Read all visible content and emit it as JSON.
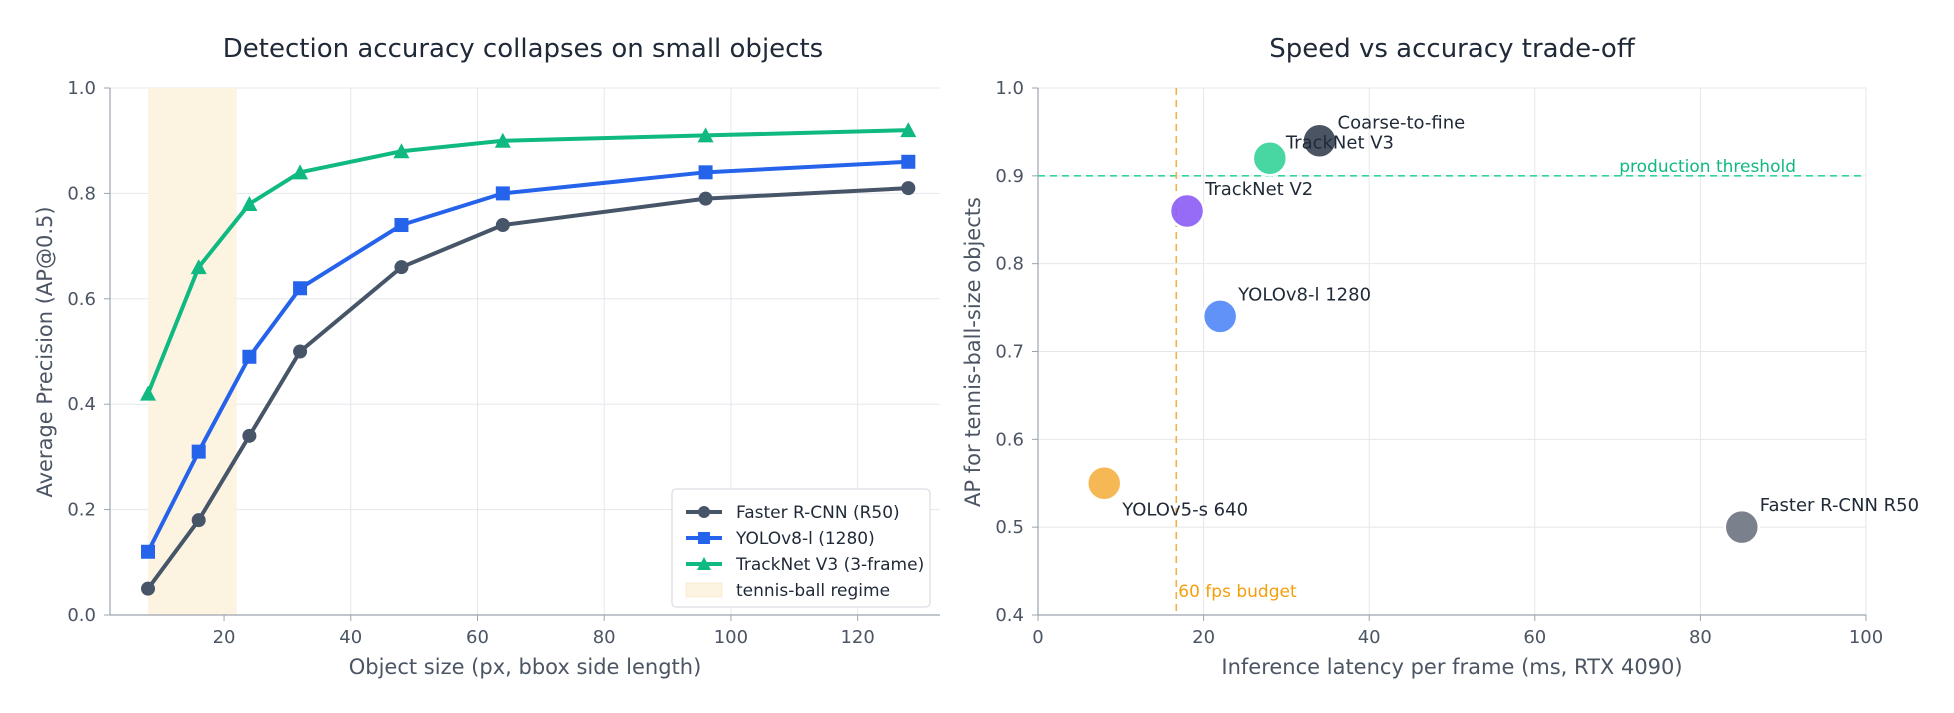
{
  "chart_data": [
    {
      "type": "line",
      "title": "Detection accuracy collapses on small objects",
      "xlabel": "Object size (px, bbox side length)",
      "ylabel": "Average Precision (AP@0.5)",
      "xlim": [
        2,
        133
      ],
      "ylim": [
        0,
        1.0
      ],
      "xticks": [
        20,
        40,
        60,
        80,
        100,
        120
      ],
      "yticks": [
        0.0,
        0.2,
        0.4,
        0.6,
        0.8,
        1.0
      ],
      "grid": true,
      "legend_position": "lower-right",
      "x": [
        8,
        16,
        24,
        32,
        48,
        64,
        96,
        128
      ],
      "series": [
        {
          "name": "Faster R-CNN (R50)",
          "color": "#475569",
          "marker": "circle",
          "values": [
            0.05,
            0.18,
            0.34,
            0.5,
            0.66,
            0.74,
            0.79,
            0.81
          ]
        },
        {
          "name": "YOLOv8-l (1280)",
          "color": "#2563eb",
          "marker": "square",
          "values": [
            0.12,
            0.31,
            0.49,
            0.62,
            0.74,
            0.8,
            0.84,
            0.86
          ]
        },
        {
          "name": "TrackNet V3 (3-frame)",
          "color": "#10b981",
          "marker": "triangle",
          "values": [
            0.42,
            0.66,
            0.78,
            0.84,
            0.88,
            0.9,
            0.91,
            0.92
          ]
        }
      ],
      "shaded_region": {
        "name": "tennis-ball regime",
        "x_range": [
          8,
          22
        ],
        "color": "#fdf3e1"
      }
    },
    {
      "type": "scatter",
      "title": "Speed vs accuracy trade-off",
      "xlabel": "Inference latency per frame (ms, RTX 4090)",
      "ylabel": "AP for tennis-ball-size objects",
      "xlim": [
        0,
        100
      ],
      "ylim": [
        0.4,
        1.0
      ],
      "xticks": [
        0,
        20,
        40,
        60,
        80,
        100
      ],
      "yticks": [
        0.4,
        0.5,
        0.6,
        0.7,
        0.8,
        0.9,
        1.0
      ],
      "grid": true,
      "points": [
        {
          "label": "YOLOv5-s 640",
          "x": 8,
          "y": 0.55,
          "color": "#f5b041"
        },
        {
          "label": "TrackNet V2",
          "x": 18,
          "y": 0.86,
          "color": "#8b5cf6"
        },
        {
          "label": "YOLOv8-l 1280",
          "x": 22,
          "y": 0.74,
          "color": "#4f86f7"
        },
        {
          "label": "TrackNet V3",
          "x": 28,
          "y": 0.92,
          "color": "#34d399"
        },
        {
          "label": "Coarse-to-fine",
          "x": 34,
          "y": 0.94,
          "color": "#374151"
        },
        {
          "label": "Faster R-CNN R50",
          "x": 85,
          "y": 0.5,
          "color": "#6b7280"
        }
      ],
      "reference_lines": [
        {
          "orientation": "horizontal",
          "value": 0.9,
          "label": "production threshold",
          "color": "#34d399"
        },
        {
          "orientation": "vertical",
          "value": 16.7,
          "label": "60 fps budget",
          "color": "#f5b041"
        }
      ]
    }
  ]
}
